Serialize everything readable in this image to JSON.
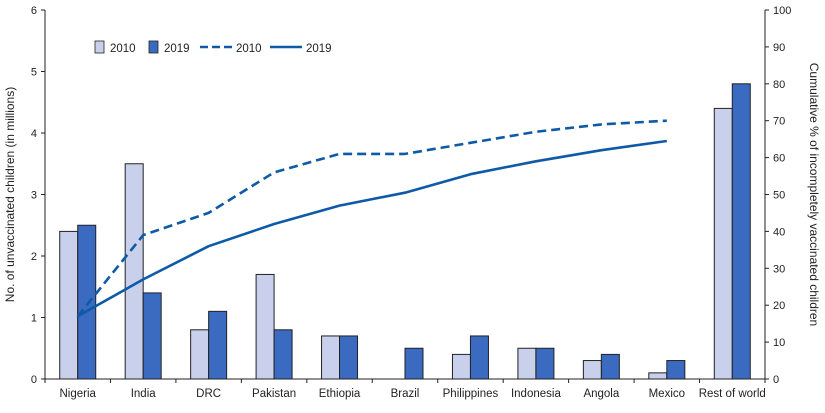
{
  "chart_data": {
    "type": "bar",
    "categories": [
      "Nigeria",
      "India",
      "DRC",
      "Pakistan",
      "Ethiopia",
      "Brazil",
      "Philippines",
      "Indonesia",
      "Angola",
      "Mexico",
      "Rest of world"
    ],
    "ylabel": "No. of unvaccinated children (in millions)",
    "ylim": [
      0,
      6
    ],
    "yticks": [
      0,
      1,
      2,
      3,
      4,
      5,
      6
    ],
    "y2label": "Cumulative % of incompletely vaccinated children",
    "y2lim": [
      0,
      100
    ],
    "y2ticks": [
      0,
      10,
      20,
      30,
      40,
      50,
      60,
      70,
      80,
      90,
      100
    ],
    "legend_position": "top-left",
    "grid": false,
    "bar_series": [
      {
        "name": "2010",
        "color": "#c9d0eb",
        "values": [
          2.4,
          3.5,
          0.8,
          1.7,
          0.7,
          0.0,
          0.4,
          0.5,
          0.3,
          0.1,
          4.4
        ]
      },
      {
        "name": "2019",
        "color": "#3a6bc0",
        "values": [
          2.5,
          1.4,
          1.1,
          0.8,
          0.7,
          0.5,
          0.7,
          0.5,
          0.4,
          0.3,
          4.8
        ]
      }
    ],
    "line_series": [
      {
        "name": "2010",
        "style": "dashed",
        "color": "#0e5aa7",
        "axis": "right",
        "values": [
          17,
          39,
          45,
          56,
          61,
          61,
          64,
          67,
          69,
          70
        ]
      },
      {
        "name": "2019",
        "style": "solid",
        "color": "#0e5aa7",
        "axis": "right",
        "values": [
          17,
          27,
          36,
          42,
          47,
          50.5,
          55.5,
          59,
          62,
          64.5
        ]
      }
    ]
  }
}
